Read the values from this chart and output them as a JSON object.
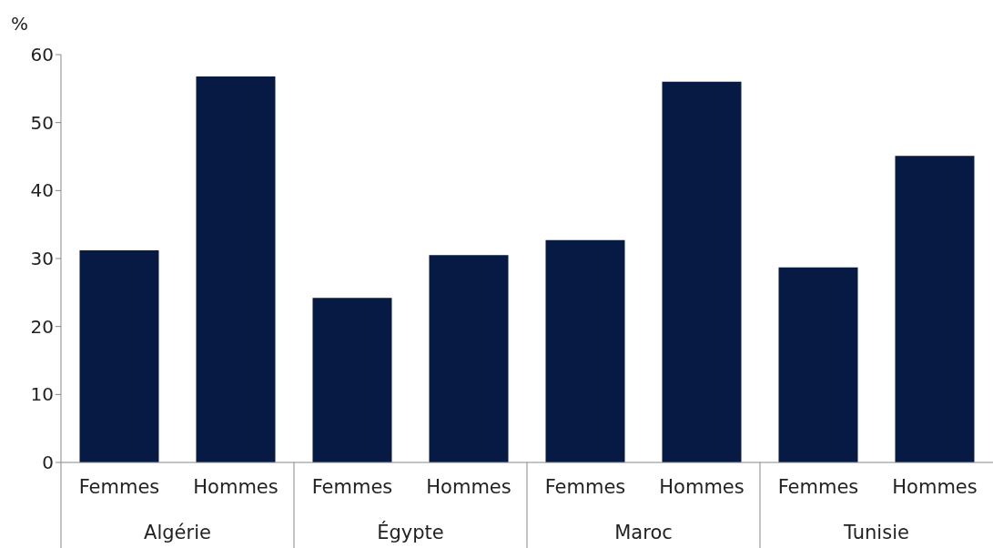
{
  "chart_data": {
    "type": "bar",
    "ylabel": "%",
    "categories": [
      "Femmes",
      "Hommes",
      "Femmes",
      "Hommes",
      "Femmes",
      "Hommes",
      "Femmes",
      "Hommes"
    ],
    "annotations": [
      "Algérie",
      "Égypte",
      "Maroc",
      "Tunisie"
    ],
    "values": [
      31.2,
      56.8,
      24.2,
      30.5,
      32.7,
      56.0,
      28.7,
      45.1
    ],
    "color": "#061a44",
    "ylim": [
      0,
      60
    ],
    "yticks": [
      0,
      10,
      20,
      30,
      40,
      50,
      60
    ],
    "grid": false
  }
}
